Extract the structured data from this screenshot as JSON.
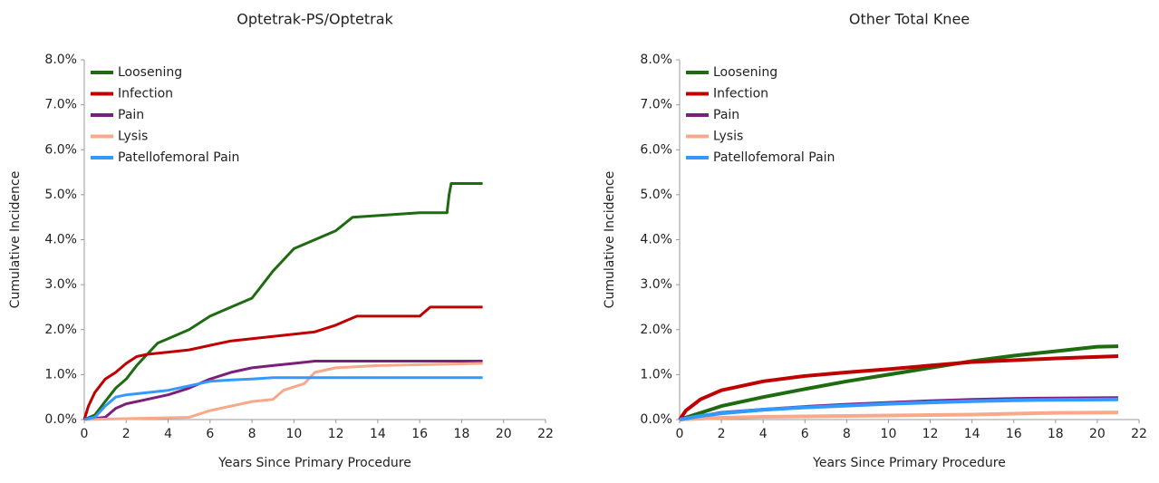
{
  "chart_data": [
    {
      "type": "line",
      "title": "Optetrak-PS/Optetrak",
      "x_label": "Years Since Primary Procedure",
      "y_label": "Cumulative Incidence",
      "xlim": [
        0,
        22
      ],
      "xticks": [
        0,
        2,
        4,
        6,
        8,
        10,
        12,
        14,
        16,
        18,
        20,
        22
      ],
      "ylim": [
        0,
        8
      ],
      "yticks": [
        {
          "value": 0,
          "label": "0.0%"
        },
        {
          "value": 1,
          "label": "1.0%"
        },
        {
          "value": 2,
          "label": "2.0%"
        },
        {
          "value": 3,
          "label": "3.0%"
        },
        {
          "value": 4,
          "label": "4.0%"
        },
        {
          "value": 5,
          "label": "5.0%"
        },
        {
          "value": 6,
          "label": "6.0%"
        },
        {
          "value": 7,
          "label": "7.0%"
        },
        {
          "value": 8,
          "label": "8.0%"
        }
      ],
      "legend": "upper-left",
      "series": [
        {
          "name": "Loosening",
          "color": "#1f6b12",
          "x": [
            0,
            0.5,
            1,
            1.5,
            2,
            2.5,
            3,
            3.5,
            4,
            5,
            6,
            7,
            8,
            8.5,
            9,
            10,
            11,
            12,
            12.8,
            16,
            17.3,
            17.4,
            17.5,
            19
          ],
          "values": [
            0,
            0.1,
            0.4,
            0.7,
            0.9,
            1.2,
            1.45,
            1.7,
            1.8,
            2.0,
            2.3,
            2.5,
            2.7,
            3.0,
            3.3,
            3.8,
            4.0,
            4.2,
            4.5,
            4.6,
            4.6,
            5.0,
            5.25,
            5.25
          ]
        },
        {
          "name": "Infection",
          "color": "#c00000",
          "x": [
            0,
            0.2,
            0.5,
            1,
            1.5,
            2,
            2.5,
            3,
            4,
            5,
            6,
            7,
            8,
            9,
            10,
            11,
            12,
            12.5,
            13,
            16,
            16.5,
            19
          ],
          "values": [
            0,
            0.3,
            0.6,
            0.9,
            1.05,
            1.25,
            1.4,
            1.45,
            1.5,
            1.55,
            1.65,
            1.75,
            1.8,
            1.85,
            1.9,
            1.95,
            2.1,
            2.2,
            2.3,
            2.3,
            2.5,
            2.5
          ]
        },
        {
          "name": "Pain",
          "color": "#7b1f7b",
          "x": [
            0,
            1,
            1.5,
            2,
            3,
            4,
            5,
            6,
            7,
            8,
            9,
            10,
            11,
            15,
            19
          ],
          "values": [
            0,
            0.05,
            0.25,
            0.35,
            0.45,
            0.55,
            0.7,
            0.9,
            1.05,
            1.15,
            1.2,
            1.25,
            1.3,
            1.3,
            1.3
          ]
        },
        {
          "name": "Lysis",
          "color": "#f7a98a",
          "x": [
            0,
            5,
            6,
            7,
            8,
            9,
            9.5,
            10.5,
            11,
            12,
            14,
            19
          ],
          "values": [
            0,
            0.05,
            0.2,
            0.3,
            0.4,
            0.45,
            0.65,
            0.8,
            1.05,
            1.15,
            1.2,
            1.25
          ]
        },
        {
          "name": "Patellofemoral Pain",
          "color": "#3399ff",
          "x": [
            0,
            0.5,
            1,
            1.5,
            2,
            3,
            4,
            5,
            6,
            7,
            8,
            9,
            19
          ],
          "values": [
            0,
            0.05,
            0.3,
            0.5,
            0.55,
            0.6,
            0.65,
            0.75,
            0.85,
            0.88,
            0.9,
            0.93,
            0.93
          ]
        }
      ]
    },
    {
      "type": "line",
      "title": "Other Total Knee",
      "x_label": "Years Since Primary Procedure",
      "y_label": "Cumulative Incidence",
      "xlim": [
        0,
        22
      ],
      "xticks": [
        0,
        2,
        4,
        6,
        8,
        10,
        12,
        14,
        16,
        18,
        20,
        22
      ],
      "ylim": [
        0,
        8
      ],
      "yticks": [
        {
          "value": 0,
          "label": "0.0%"
        },
        {
          "value": 1,
          "label": "1.0%"
        },
        {
          "value": 2,
          "label": "2.0%"
        },
        {
          "value": 3,
          "label": "3.0%"
        },
        {
          "value": 4,
          "label": "4.0%"
        },
        {
          "value": 5,
          "label": "5.0%"
        },
        {
          "value": 6,
          "label": "6.0%"
        },
        {
          "value": 7,
          "label": "7.0%"
        },
        {
          "value": 8,
          "label": "8.0%"
        }
      ],
      "legend": "upper-left",
      "series": [
        {
          "name": "Loosening",
          "color": "#1f6b12",
          "x": [
            0,
            1,
            2,
            4,
            6,
            8,
            10,
            12,
            14,
            16,
            18,
            20,
            21
          ],
          "values": [
            0,
            0.15,
            0.3,
            0.5,
            0.68,
            0.85,
            1.0,
            1.15,
            1.3,
            1.42,
            1.52,
            1.62,
            1.63
          ]
        },
        {
          "name": "Infection",
          "color": "#c00000",
          "x": [
            0,
            0.3,
            1,
            2,
            4,
            6,
            8,
            10,
            12,
            14,
            16,
            18,
            21
          ],
          "values": [
            0,
            0.2,
            0.45,
            0.65,
            0.85,
            0.97,
            1.05,
            1.12,
            1.2,
            1.28,
            1.32,
            1.36,
            1.41
          ]
        },
        {
          "name": "Pain",
          "color": "#7b1f7b",
          "x": [
            0,
            1,
            2,
            4,
            6,
            8,
            10,
            12,
            14,
            16,
            18,
            21
          ],
          "values": [
            0,
            0.07,
            0.15,
            0.22,
            0.28,
            0.33,
            0.37,
            0.41,
            0.44,
            0.46,
            0.47,
            0.48
          ]
        },
        {
          "name": "Lysis",
          "color": "#f7a98a",
          "x": [
            0,
            1,
            2,
            4,
            6,
            8,
            10,
            12,
            14,
            16,
            18,
            21
          ],
          "values": [
            0,
            0.02,
            0.04,
            0.06,
            0.07,
            0.08,
            0.09,
            0.1,
            0.11,
            0.13,
            0.15,
            0.16
          ]
        },
        {
          "name": "Patellofemoral Pain",
          "color": "#3399ff",
          "x": [
            0,
            1,
            2,
            4,
            6,
            8,
            10,
            12,
            14,
            16,
            18,
            21
          ],
          "values": [
            0,
            0.08,
            0.14,
            0.22,
            0.27,
            0.31,
            0.35,
            0.38,
            0.41,
            0.43,
            0.44,
            0.45
          ]
        }
      ]
    }
  ]
}
